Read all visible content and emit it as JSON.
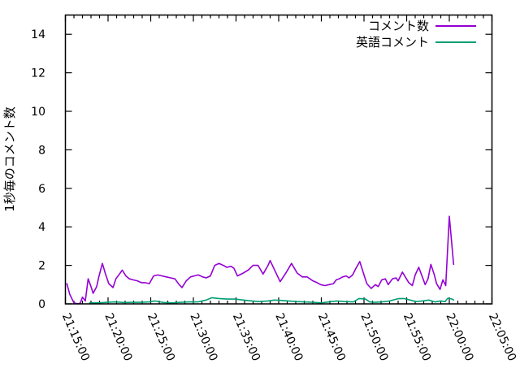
{
  "chart": {
    "background": "#ffffff",
    "axis_color": "#000000",
    "ylabel": "1秒毎のコメント数",
    "legend": {
      "position": "top-right-inside",
      "entries": [
        {
          "label": "コメント数",
          "color": "#9400d3"
        },
        {
          "label": "英語コメント",
          "color": "#009e73"
        }
      ]
    }
  },
  "chart_data": {
    "type": "line",
    "title": "",
    "xlabel": "",
    "ylabel": "1秒毎のコメント数",
    "grid": false,
    "legend_position": "top-right-inside",
    "ylim": [
      0,
      15
    ],
    "y_ticks": [
      0,
      2,
      4,
      6,
      8,
      10,
      12,
      14
    ],
    "x_axis": {
      "start_label": "21:15:00",
      "end_label": "22:05:00",
      "range_seconds": [
        0,
        3000
      ],
      "major_tick_interval_seconds": 300,
      "minor_tick_interval_seconds": 60,
      "tick_labels": [
        "21:15:00",
        "21:20:00",
        "21:25:00",
        "21:30:00",
        "21:35:00",
        "21:40:00",
        "21:45:00",
        "21:50:00",
        "21:55:00",
        "22:00:00",
        "22:05:00"
      ]
    },
    "series": [
      {
        "name": "コメント数",
        "color": "#9400d3",
        "points": [
          [
            10,
            1.05
          ],
          [
            30,
            0.5
          ],
          [
            60,
            0.05
          ],
          [
            90,
            0.0
          ],
          [
            105,
            0.05
          ],
          [
            120,
            0.35
          ],
          [
            140,
            0.15
          ],
          [
            160,
            1.3
          ],
          [
            180,
            0.9
          ],
          [
            195,
            0.55
          ],
          [
            220,
            0.9
          ],
          [
            235,
            1.4
          ],
          [
            260,
            2.1
          ],
          [
            280,
            1.6
          ],
          [
            305,
            1.05
          ],
          [
            335,
            0.85
          ],
          [
            355,
            1.3
          ],
          [
            380,
            1.55
          ],
          [
            400,
            1.75
          ],
          [
            425,
            1.45
          ],
          [
            450,
            1.3
          ],
          [
            475,
            1.25
          ],
          [
            505,
            1.2
          ],
          [
            535,
            1.1
          ],
          [
            560,
            1.1
          ],
          [
            590,
            1.05
          ],
          [
            620,
            1.45
          ],
          [
            650,
            1.5
          ],
          [
            680,
            1.45
          ],
          [
            710,
            1.4
          ],
          [
            740,
            1.35
          ],
          [
            770,
            1.3
          ],
          [
            800,
            1.0
          ],
          [
            820,
            0.85
          ],
          [
            850,
            1.2
          ],
          [
            880,
            1.4
          ],
          [
            905,
            1.45
          ],
          [
            935,
            1.5
          ],
          [
            965,
            1.4
          ],
          [
            990,
            1.35
          ],
          [
            1020,
            1.45
          ],
          [
            1050,
            2.0
          ],
          [
            1080,
            2.1
          ],
          [
            1110,
            2.0
          ],
          [
            1135,
            1.9
          ],
          [
            1165,
            1.95
          ],
          [
            1185,
            1.85
          ],
          [
            1210,
            1.45
          ],
          [
            1250,
            1.6
          ],
          [
            1285,
            1.75
          ],
          [
            1320,
            2.0
          ],
          [
            1355,
            2.0
          ],
          [
            1390,
            1.55
          ],
          [
            1425,
            2.0
          ],
          [
            1440,
            2.25
          ],
          [
            1475,
            1.7
          ],
          [
            1510,
            1.15
          ],
          [
            1550,
            1.6
          ],
          [
            1590,
            2.1
          ],
          [
            1630,
            1.6
          ],
          [
            1665,
            1.4
          ],
          [
            1700,
            1.4
          ],
          [
            1740,
            1.2
          ],
          [
            1770,
            1.1
          ],
          [
            1795,
            1.0
          ],
          [
            1825,
            0.95
          ],
          [
            1855,
            1.0
          ],
          [
            1885,
            1.05
          ],
          [
            1905,
            1.25
          ],
          [
            1925,
            1.3
          ],
          [
            1950,
            1.4
          ],
          [
            1975,
            1.45
          ],
          [
            1995,
            1.35
          ],
          [
            2020,
            1.5
          ],
          [
            2040,
            1.8
          ],
          [
            2070,
            2.2
          ],
          [
            2100,
            1.5
          ],
          [
            2120,
            1.05
          ],
          [
            2150,
            0.8
          ],
          [
            2180,
            1.0
          ],
          [
            2200,
            0.9
          ],
          [
            2225,
            1.25
          ],
          [
            2250,
            1.3
          ],
          [
            2270,
            1.0
          ],
          [
            2300,
            1.3
          ],
          [
            2325,
            1.35
          ],
          [
            2340,
            1.2
          ],
          [
            2370,
            1.65
          ],
          [
            2390,
            1.4
          ],
          [
            2415,
            1.1
          ],
          [
            2440,
            0.95
          ],
          [
            2460,
            1.5
          ],
          [
            2485,
            1.9
          ],
          [
            2510,
            1.4
          ],
          [
            2530,
            1.0
          ],
          [
            2550,
            1.3
          ],
          [
            2570,
            2.05
          ],
          [
            2595,
            1.5
          ],
          [
            2610,
            1.05
          ],
          [
            2635,
            0.75
          ],
          [
            2655,
            1.25
          ],
          [
            2675,
            0.95
          ],
          [
            2700,
            4.55
          ],
          [
            2730,
            2.05
          ]
        ]
      },
      {
        "name": "英語コメント",
        "color": "#009e73",
        "points": [
          [
            170,
            0.05
          ],
          [
            230,
            0.05
          ],
          [
            290,
            0.08
          ],
          [
            350,
            0.1
          ],
          [
            410,
            0.07
          ],
          [
            470,
            0.08
          ],
          [
            530,
            0.08
          ],
          [
            590,
            0.1
          ],
          [
            630,
            0.15
          ],
          [
            690,
            0.07
          ],
          [
            750,
            0.05
          ],
          [
            810,
            0.08
          ],
          [
            870,
            0.1
          ],
          [
            930,
            0.1
          ],
          [
            990,
            0.2
          ],
          [
            1030,
            0.32
          ],
          [
            1080,
            0.28
          ],
          [
            1135,
            0.25
          ],
          [
            1195,
            0.25
          ],
          [
            1250,
            0.2
          ],
          [
            1310,
            0.15
          ],
          [
            1365,
            0.12
          ],
          [
            1425,
            0.15
          ],
          [
            1470,
            0.2
          ],
          [
            1510,
            0.18
          ],
          [
            1570,
            0.15
          ],
          [
            1625,
            0.12
          ],
          [
            1680,
            0.1
          ],
          [
            1740,
            0.08
          ],
          [
            1795,
            0.05
          ],
          [
            1855,
            0.1
          ],
          [
            1910,
            0.15
          ],
          [
            1965,
            0.12
          ],
          [
            2025,
            0.1
          ],
          [
            2065,
            0.28
          ],
          [
            2110,
            0.25
          ],
          [
            2140,
            0.1
          ],
          [
            2170,
            0.08
          ],
          [
            2225,
            0.1
          ],
          [
            2280,
            0.15
          ],
          [
            2340,
            0.27
          ],
          [
            2380,
            0.28
          ],
          [
            2425,
            0.2
          ],
          [
            2465,
            0.12
          ],
          [
            2510,
            0.15
          ],
          [
            2555,
            0.2
          ],
          [
            2600,
            0.1
          ],
          [
            2640,
            0.15
          ],
          [
            2670,
            0.12
          ],
          [
            2690,
            0.3
          ],
          [
            2720,
            0.25
          ],
          [
            2730,
            0.2
          ]
        ]
      }
    ]
  }
}
